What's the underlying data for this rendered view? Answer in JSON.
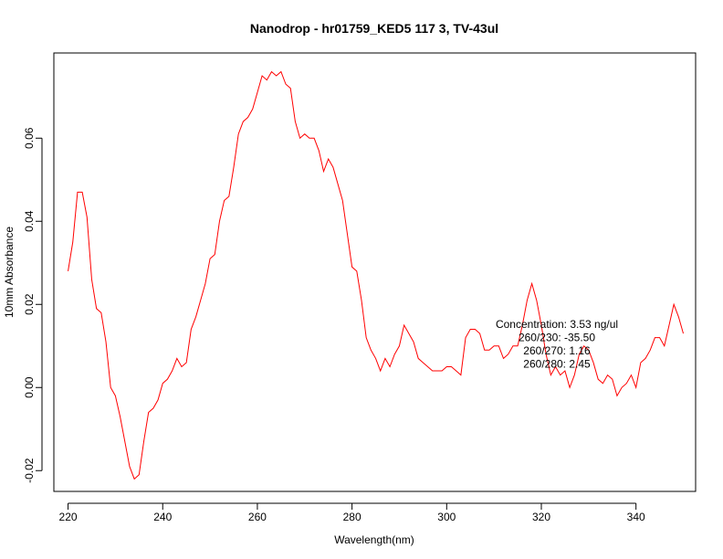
{
  "chart_data": {
    "type": "line",
    "title": "Nanodrop - hr01759_KED5 117 3, TV-43ul",
    "xlabel": "Wavelength(nm)",
    "ylabel": "10mm Absorbance",
    "xlim": [
      217,
      352.6
    ],
    "ylim": [
      -0.025,
      0.0805
    ],
    "x_ticks": [
      220,
      240,
      260,
      280,
      300,
      320,
      340
    ],
    "y_ticks": [
      -0.02,
      0.0,
      0.02,
      0.04,
      0.06
    ],
    "x_tick_labels": [
      "220",
      "240",
      "260",
      "280",
      "300",
      "320",
      "340"
    ],
    "y_tick_labels": [
      "-0.02",
      "0.00",
      "0.02",
      "0.04",
      "0.06"
    ],
    "grid": false,
    "line_color": "#ff0000",
    "series": [
      {
        "x": [
          220,
          221,
          222,
          223,
          224,
          225,
          226,
          227,
          228,
          229,
          230,
          231,
          232,
          233,
          234,
          235,
          236,
          237,
          238,
          239,
          240,
          241,
          242,
          243,
          244,
          245,
          246,
          247,
          248,
          249,
          250,
          251,
          252,
          253,
          254,
          255,
          256,
          257,
          258,
          259,
          260,
          261,
          262,
          263,
          264,
          265,
          266,
          267,
          268,
          269,
          270,
          271,
          272,
          273,
          274,
          275,
          276,
          277,
          278,
          279,
          280,
          281,
          282,
          283,
          284,
          285,
          286,
          287,
          288,
          289,
          290,
          291,
          292,
          293,
          294,
          295,
          296,
          297,
          298,
          299,
          300,
          301,
          302,
          303,
          304,
          305,
          306,
          307,
          308,
          309,
          310,
          311,
          312,
          313,
          314,
          315,
          316,
          317,
          318,
          319,
          320,
          321,
          322,
          323,
          324,
          325,
          326,
          327,
          328,
          329,
          330,
          331,
          332,
          333,
          334,
          335,
          336,
          337,
          338,
          339,
          340,
          341,
          342,
          343,
          344,
          345,
          346,
          347,
          348,
          349,
          350
        ],
        "values": [
          0.028,
          0.035,
          0.047,
          0.047,
          0.041,
          0.026,
          0.019,
          0.018,
          0.011,
          0.0,
          -0.002,
          -0.007,
          -0.013,
          -0.019,
          -0.022,
          -0.021,
          -0.013,
          -0.006,
          -0.005,
          -0.003,
          0.001,
          0.002,
          0.004,
          0.007,
          0.005,
          0.006,
          0.014,
          0.017,
          0.021,
          0.025,
          0.031,
          0.032,
          0.04,
          0.045,
          0.046,
          0.053,
          0.061,
          0.064,
          0.065,
          0.067,
          0.071,
          0.075,
          0.074,
          0.076,
          0.075,
          0.076,
          0.073,
          0.072,
          0.064,
          0.06,
          0.061,
          0.06,
          0.06,
          0.057,
          0.052,
          0.055,
          0.053,
          0.049,
          0.045,
          0.037,
          0.029,
          0.028,
          0.021,
          0.012,
          0.009,
          0.007,
          0.004,
          0.007,
          0.005,
          0.008,
          0.01,
          0.015,
          0.013,
          0.011,
          0.007,
          0.006,
          0.005,
          0.004,
          0.004,
          0.004,
          0.005,
          0.005,
          0.004,
          0.003,
          0.012,
          0.014,
          0.014,
          0.013,
          0.009,
          0.009,
          0.01,
          0.01,
          0.007,
          0.008,
          0.01,
          0.01,
          0.015,
          0.021,
          0.025,
          0.021,
          0.015,
          0.008,
          0.003,
          0.005,
          0.003,
          0.004,
          0.0,
          0.003,
          0.008,
          0.01,
          0.009,
          0.006,
          0.002,
          0.001,
          0.003,
          0.002,
          -0.002,
          0.0,
          0.001,
          0.003,
          0.0,
          0.006,
          0.007,
          0.009,
          0.012,
          0.012,
          0.01,
          0.015,
          0.02,
          0.017,
          0.013
        ]
      }
    ],
    "annotations": [
      "Concentration: 3.53 ng/ul",
      "260/230: -35.50",
      "260/270: 1.16",
      "260/280: 2.45"
    ]
  }
}
